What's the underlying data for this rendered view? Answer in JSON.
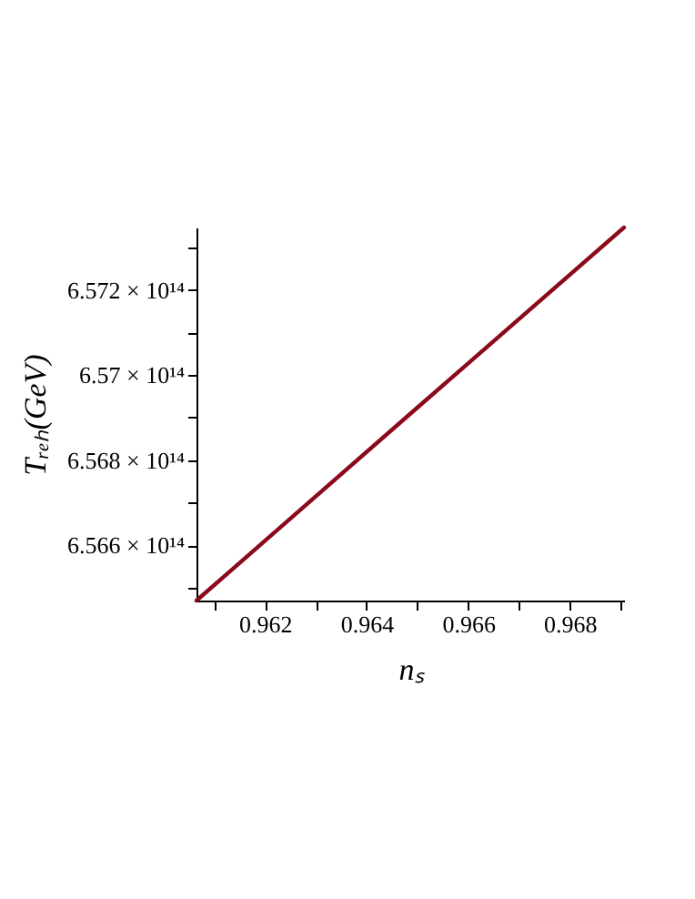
{
  "chart_data": {
    "type": "line",
    "xlabel": "nₛ",
    "ylabel": "Tᵣₑₕ(GeV)",
    "x": [
      0.96065,
      0.96486,
      0.96907
    ],
    "series": [
      {
        "color": "#8b0a1a",
        "values": [
          656470000000000.0,
          656909000000000.0,
          657347000000000.0
        ]
      }
    ],
    "xlim": [
      0.96065,
      0.96907
    ],
    "xticks": [
      {
        "value": 0.961,
        "label": null
      },
      0.962,
      {
        "value": 0.963,
        "label": null
      },
      0.964,
      {
        "value": 0.965,
        "label": null
      },
      0.966,
      {
        "value": 0.967,
        "label": null
      },
      0.968,
      {
        "value": 0.969,
        "label": null
      }
    ],
    "ylim": [
      656470000000000.0,
      657347000000000.0
    ],
    "yticks": [
      {
        "value": 656500000000000.0,
        "label": null
      },
      {
        "value": 656600000000000.0,
        "label": "6.566 × 10¹⁴"
      },
      {
        "value": 656700000000000.0,
        "label": null
      },
      {
        "value": 656800000000000.0,
        "label": "6.568 × 10¹⁴"
      },
      {
        "value": 656900000000000.0,
        "label": null
      },
      {
        "value": 657000000000000.0,
        "label": "6.57 × 10¹⁴"
      },
      {
        "value": 657100000000000.0,
        "label": null
      },
      {
        "value": 657200000000000.0,
        "label": "6.572 × 10¹⁴"
      },
      {
        "value": 657300000000000.0,
        "label": null
      }
    ],
    "grid": false,
    "line_style": "solid",
    "marker": "none"
  }
}
